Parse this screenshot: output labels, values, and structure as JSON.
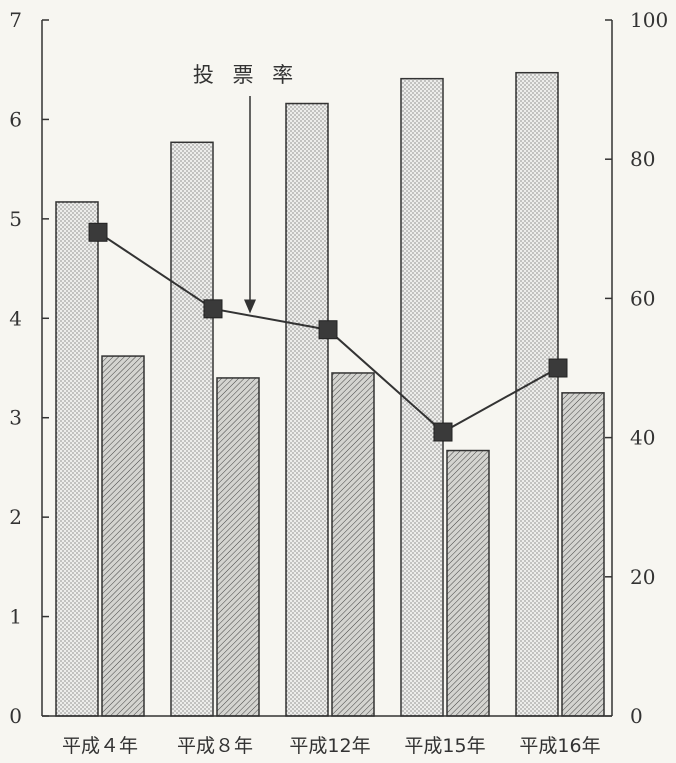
{
  "chart_data": {
    "type": "bar",
    "categories": [
      "平成４年",
      "平成８年",
      "平成12年",
      "平成15年",
      "平成16年"
    ],
    "series": [
      {
        "values": [
          5.17,
          5.77,
          6.16,
          6.41,
          6.47
        ],
        "axis": "left",
        "kind": "bar",
        "pattern": "dotted"
      },
      {
        "values": [
          3.62,
          3.4,
          3.45,
          2.67,
          3.25
        ],
        "axis": "left",
        "kind": "bar",
        "pattern": "hatched"
      },
      {
        "values": [
          69.5,
          58.5,
          55.5,
          40.8,
          50.0
        ],
        "axis": "right",
        "kind": "line",
        "marker": "square"
      }
    ],
    "y_left": {
      "ylim": [
        0,
        7
      ],
      "ticks": [
        "0",
        "1",
        "2",
        "3",
        "4",
        "5",
        "6",
        "7"
      ]
    },
    "y_right": {
      "ylim": [
        0,
        100
      ],
      "ticks": [
        "0",
        "20",
        "40",
        "60",
        "80",
        "100"
      ]
    },
    "annotations": [
      {
        "text": "投 票 率",
        "points_to_series": 2,
        "points_to_category": 1
      }
    ],
    "grid": false,
    "legend": "none",
    "colors": {
      "background": "#f7f6f1",
      "axis": "#333333",
      "bar_dotted_fill": "#ededeb",
      "bar_dotted_dot": "#555555",
      "bar_hatched_fill": "#d4d4d0",
      "bar_hatched_line": "#444444",
      "line": "#333333",
      "marker": "#3a3a3a"
    }
  }
}
